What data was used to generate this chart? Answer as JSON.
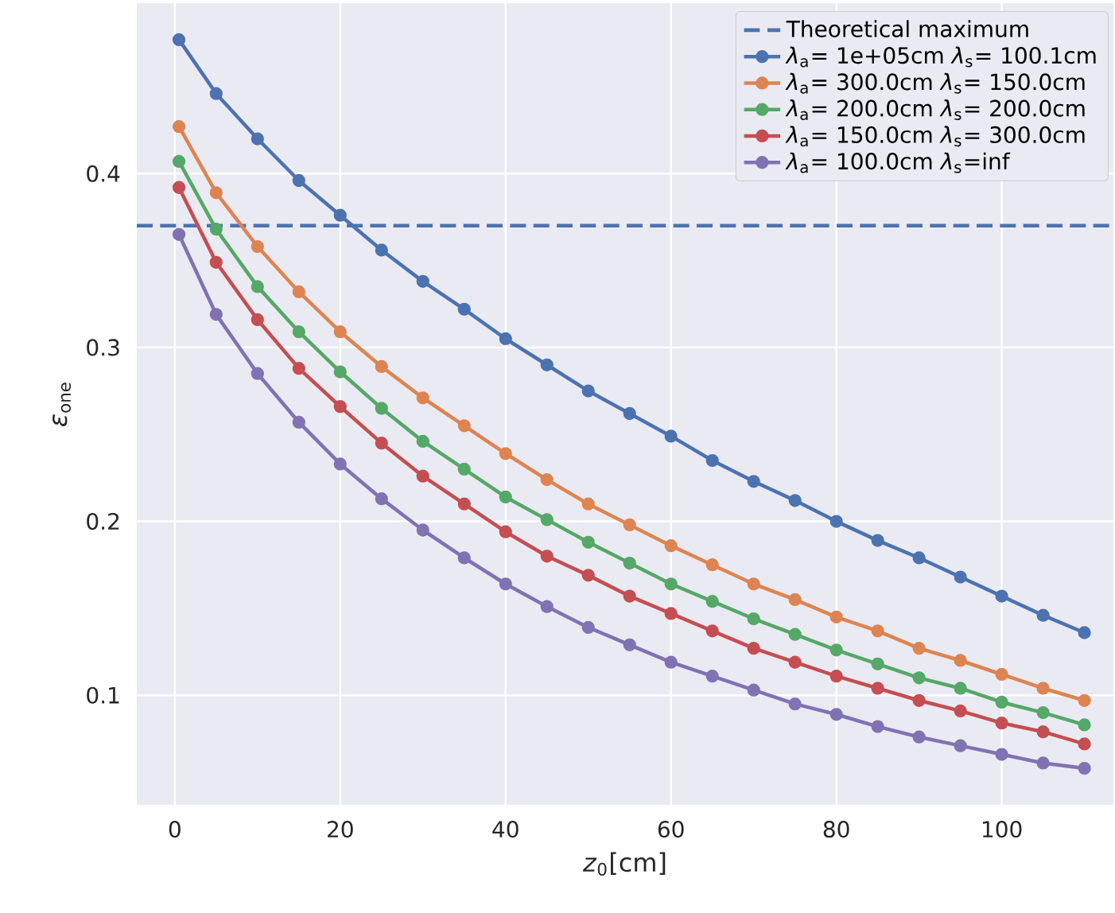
{
  "chart_data": {
    "type": "line",
    "xlabel": "*z*$_{0}$[cm]",
    "ylabel": "*ε*$_{one}$",
    "x": [
      0.5,
      5,
      10,
      15,
      20,
      25,
      30,
      35,
      40,
      45,
      50,
      55,
      60,
      65,
      70,
      75,
      80,
      85,
      90,
      95,
      100,
      105,
      110
    ],
    "xlim": [
      -4.6,
      113.5
    ],
    "ylim": [
      0.037,
      0.498
    ],
    "xticks": [
      0,
      20,
      40,
      60,
      80,
      100
    ],
    "yticks": [
      0.1,
      0.2,
      0.3,
      0.4
    ],
    "grid": true,
    "legend": "top right",
    "marker": "circle",
    "line_style": "solid",
    "ref_lines": [
      {
        "axis": "y",
        "value": 0.37,
        "label": "Theoretical maximum",
        "color": "#4c72b0",
        "line_style": "dashed"
      }
    ],
    "series": [
      {
        "name": "*λ*$_{a}$= 1e+05cm *λ*$_{s}$=  100.1cm",
        "color": "#4c72b0",
        "values": [
          0.477,
          0.446,
          0.42,
          0.396,
          0.376,
          0.356,
          0.338,
          0.322,
          0.305,
          0.29,
          0.275,
          0.262,
          0.249,
          0.235,
          0.223,
          0.212,
          0.2,
          0.189,
          0.179,
          0.168,
          0.157,
          0.146,
          0.136
        ]
      },
      {
        "name": "*λ*$_{a}$=  300.0cm *λ*$_{s}$=  150.0cm",
        "color": "#dd8452",
        "values": [
          0.427,
          0.389,
          0.358,
          0.332,
          0.309,
          0.289,
          0.271,
          0.255,
          0.239,
          0.224,
          0.21,
          0.198,
          0.186,
          0.175,
          0.164,
          0.155,
          0.145,
          0.137,
          0.127,
          0.12,
          0.112,
          0.104,
          0.097
        ]
      },
      {
        "name": "*λ*$_{a}$=  200.0cm *λ*$_{s}$=  200.0cm",
        "color": "#55a868",
        "values": [
          0.407,
          0.368,
          0.335,
          0.309,
          0.286,
          0.265,
          0.246,
          0.23,
          0.214,
          0.201,
          0.188,
          0.176,
          0.164,
          0.154,
          0.144,
          0.135,
          0.126,
          0.118,
          0.11,
          0.104,
          0.096,
          0.09,
          0.083
        ]
      },
      {
        "name": "*λ*$_{a}$=  150.0cm *λ*$_{s}$=  300.0cm",
        "color": "#c44e52",
        "values": [
          0.392,
          0.349,
          0.316,
          0.288,
          0.266,
          0.245,
          0.226,
          0.21,
          0.194,
          0.18,
          0.169,
          0.157,
          0.147,
          0.137,
          0.127,
          0.119,
          0.111,
          0.104,
          0.097,
          0.091,
          0.084,
          0.079,
          0.072
        ]
      },
      {
        "name": "*λ*$_{a}$=  100.0cm *λ*$_{s}$=inf",
        "color": "#8172b3",
        "values": [
          0.365,
          0.319,
          0.285,
          0.257,
          0.233,
          0.213,
          0.195,
          0.179,
          0.164,
          0.151,
          0.139,
          0.129,
          0.119,
          0.111,
          0.103,
          0.095,
          0.089,
          0.082,
          0.076,
          0.071,
          0.066,
          0.061,
          0.058
        ]
      }
    ]
  }
}
